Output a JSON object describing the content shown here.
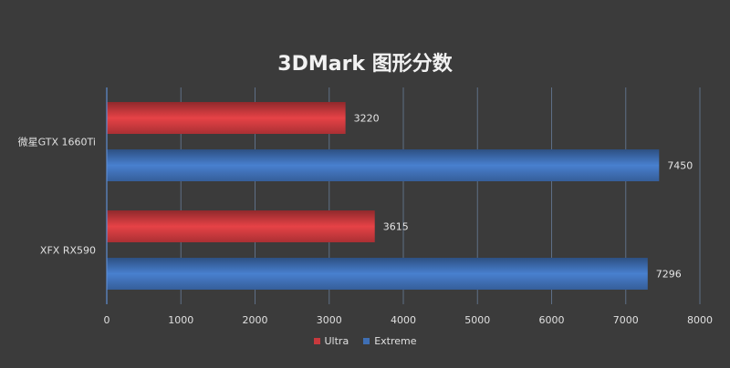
{
  "chart_data": {
    "type": "bar",
    "orientation": "horizontal",
    "title": "3DMark 图形分数",
    "categories": [
      "微星GTX 1660Ti",
      "XFX RX590"
    ],
    "series": [
      {
        "name": "Ultra",
        "color": "#c8393d",
        "values": [
          3220,
          3615
        ]
      },
      {
        "name": "Extreme",
        "color": "#3f6fb4",
        "values": [
          7450,
          7296
        ]
      }
    ],
    "xlim": [
      0,
      8000
    ],
    "xticks": [
      0,
      1000,
      2000,
      3000,
      4000,
      5000,
      6000,
      7000,
      8000
    ],
    "grid": true,
    "legend_position": "bottom"
  }
}
